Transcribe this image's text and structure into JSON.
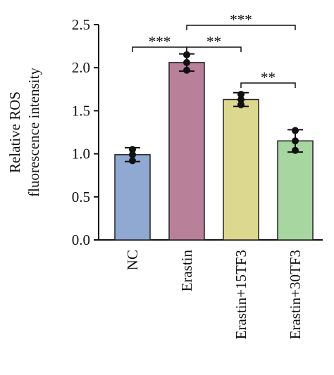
{
  "chart_data": {
    "type": "bar",
    "ylabel": [
      "Relative ROS",
      "fluorescence intensity"
    ],
    "categories": [
      "NC",
      "Erastin",
      "Erastin+15TF3",
      "Erastin+30TF3"
    ],
    "values": [
      0.99,
      2.06,
      1.63,
      1.15
    ],
    "errors": [
      0.08,
      0.1,
      0.08,
      0.13
    ],
    "points": [
      [
        1.05,
        0.99,
        0.92
      ],
      [
        2.15,
        2.06,
        1.97
      ],
      [
        1.69,
        1.63,
        1.57
      ],
      [
        1.27,
        1.15,
        1.04
      ]
    ],
    "colors": [
      "#8fa9d3",
      "#b9809a",
      "#dcd88f",
      "#a8d6a0"
    ],
    "ylim": [
      0,
      2.5
    ],
    "yticks": [
      {
        "value": 0,
        "label": "0.0"
      },
      {
        "value": 0.5,
        "label": "0.5"
      },
      {
        "value": 1,
        "label": "1.0"
      },
      {
        "value": 1.5,
        "label": "1.5"
      },
      {
        "value": 2,
        "label": "2.0"
      },
      {
        "value": 2.5,
        "label": "2.5"
      }
    ],
    "comparisons": [
      {
        "between": [
          0,
          1
        ],
        "label": "***"
      },
      {
        "between": [
          1,
          2
        ],
        "label": "**"
      },
      {
        "between": [
          1,
          3
        ],
        "label": "***"
      },
      {
        "between": [
          2,
          3
        ],
        "label": "**"
      }
    ]
  }
}
